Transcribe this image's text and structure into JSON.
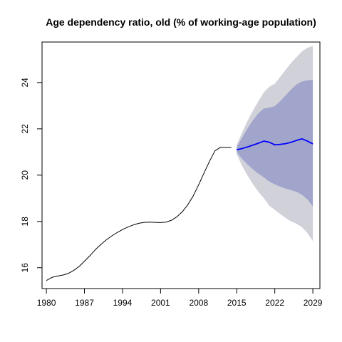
{
  "chart_data": {
    "type": "line",
    "title": "Age dependency ratio, old (% of working-age population)",
    "xlabel": "",
    "ylabel": "",
    "xlim": [
      1979.2,
      2030.3
    ],
    "ylim": [
      15.1,
      25.75
    ],
    "x_ticks": [
      1980,
      1987,
      1994,
      2001,
      2008,
      2015,
      2022,
      2029
    ],
    "y_ticks": [
      16,
      18,
      20,
      22,
      24
    ],
    "grid": false,
    "legend": "none",
    "colors": {
      "history": "#000000",
      "forecast": "#0000ff",
      "band_outer": "#d1d1da",
      "band_inner": "#a1a5cb"
    },
    "series": [
      {
        "role": "history",
        "x": [
          1980,
          1981,
          1982,
          1983,
          1984,
          1985,
          1986,
          1987,
          1988,
          1989,
          1990,
          1991,
          1992,
          1993,
          1994,
          1995,
          1996,
          1997,
          1998,
          1999,
          2000,
          2001,
          2002,
          2003,
          2004,
          2005,
          2006,
          2007,
          2008,
          2009,
          2010,
          2011,
          2012,
          2013,
          2014
        ],
        "y": [
          15.45,
          15.58,
          15.64,
          15.68,
          15.75,
          15.88,
          16.05,
          16.28,
          16.52,
          16.78,
          17.0,
          17.2,
          17.37,
          17.52,
          17.65,
          17.76,
          17.85,
          17.92,
          17.96,
          17.97,
          17.96,
          17.95,
          17.97,
          18.05,
          18.2,
          18.42,
          18.72,
          19.1,
          19.58,
          20.1,
          20.6,
          21.05,
          21.2,
          21.2,
          21.2
        ]
      },
      {
        "role": "forecast",
        "x": [
          2015,
          2016,
          2017,
          2018,
          2019,
          2020,
          2021,
          2022,
          2023,
          2024,
          2025,
          2026,
          2027,
          2028,
          2029
        ],
        "y": [
          21.1,
          21.15,
          21.22,
          21.3,
          21.38,
          21.47,
          21.42,
          21.31,
          21.33,
          21.36,
          21.42,
          21.5,
          21.57,
          21.47,
          21.35
        ]
      }
    ],
    "bands": [
      {
        "level": "outer",
        "x": [
          2015,
          2016,
          2017,
          2018,
          2019,
          2020,
          2021,
          2022,
          2023,
          2024,
          2025,
          2026,
          2027,
          2028,
          2029
        ],
        "upper": [
          21.3,
          21.85,
          22.35,
          22.8,
          23.2,
          23.58,
          23.82,
          23.95,
          24.25,
          24.55,
          24.85,
          25.1,
          25.35,
          25.5,
          25.58
        ],
        "lower": [
          20.9,
          20.4,
          19.98,
          19.6,
          19.28,
          19.0,
          18.68,
          18.5,
          18.32,
          18.15,
          18.0,
          17.9,
          17.75,
          17.5,
          17.15
        ]
      },
      {
        "level": "inner",
        "x": [
          2015,
          2016,
          2017,
          2018,
          2019,
          2020,
          2021,
          2022,
          2023,
          2024,
          2025,
          2026,
          2027,
          2028,
          2029
        ],
        "upper": [
          21.22,
          21.62,
          22.02,
          22.38,
          22.68,
          22.88,
          22.92,
          22.98,
          23.2,
          23.45,
          23.7,
          23.92,
          24.05,
          24.1,
          24.12
        ],
        "lower": [
          21.0,
          20.7,
          20.46,
          20.25,
          20.06,
          19.9,
          19.72,
          19.6,
          19.5,
          19.42,
          19.35,
          19.28,
          19.15,
          18.95,
          18.65
        ]
      }
    ]
  }
}
